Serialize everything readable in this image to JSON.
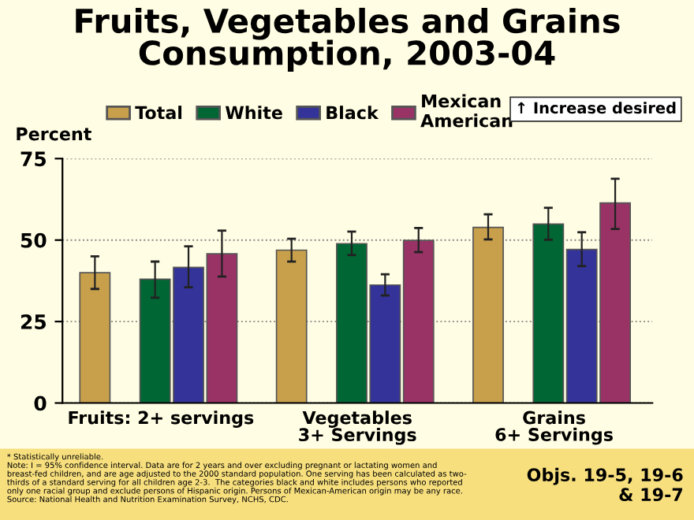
{
  "chart_data": {
    "type": "bar",
    "title": "Fruits, Vegetables and Grains\nConsumption, 2003-04",
    "categories": [
      "Fruits: 2+ servings",
      "Vegetables\n3+ Servings",
      "Grains\n6+ Servings"
    ],
    "ylabel": "Percent",
    "series": [
      {
        "name": "Total",
        "color": "#c8a04c",
        "values": [
          40.0,
          46.9,
          53.9
        ],
        "errors": [
          [
            35.0,
            45.0
          ],
          [
            43.4,
            50.4
          ],
          [
            50.2,
            57.9
          ]
        ]
      },
      {
        "name": "White",
        "color": "#006633",
        "values": [
          38.0,
          48.9,
          54.9
        ],
        "errors": [
          [
            32.3,
            43.4
          ],
          [
            45.4,
            52.6
          ],
          [
            50.1,
            59.9
          ]
        ]
      },
      {
        "name": "Black",
        "color": "#333399",
        "values": [
          41.6,
          36.2,
          47.1
        ],
        "errors": [
          [
            35.5,
            48.1
          ],
          [
            33.0,
            39.5
          ],
          [
            42.0,
            52.4
          ]
        ]
      },
      {
        "name": "Mexican\nAmerican",
        "color": "#993366",
        "values": [
          45.8,
          49.9,
          61.4
        ],
        "errors": [
          [
            38.8,
            52.9
          ],
          [
            46.3,
            53.7
          ],
          [
            53.4,
            68.8
          ]
        ]
      }
    ],
    "ylim": [
      0,
      75
    ],
    "yticks": [
      0,
      25,
      50,
      75
    ],
    "grid": "y",
    "legend": "top",
    "annotations": [
      "↑ Increase desired",
      "* Statistically unreliable.\nNote: I = 95% confidence interval. Data are for 2 years and over excluding pregnant or lactating women and\nbreast-fed children, and are age adjusted to the 2000 standard population. One serving has been calculated as two-\nthirds of a standard serving for all children age 2-3.  The categories black and white includes persons who reported\nonly one racial group and exclude persons of Hispanic origin. Persons of Mexican-American origin may be any race.\nSource: National Health and Nutrition Examination Survey, NCHS, CDC.",
      "Objs. 19-5, 19-6\n& 19-7"
    ]
  }
}
